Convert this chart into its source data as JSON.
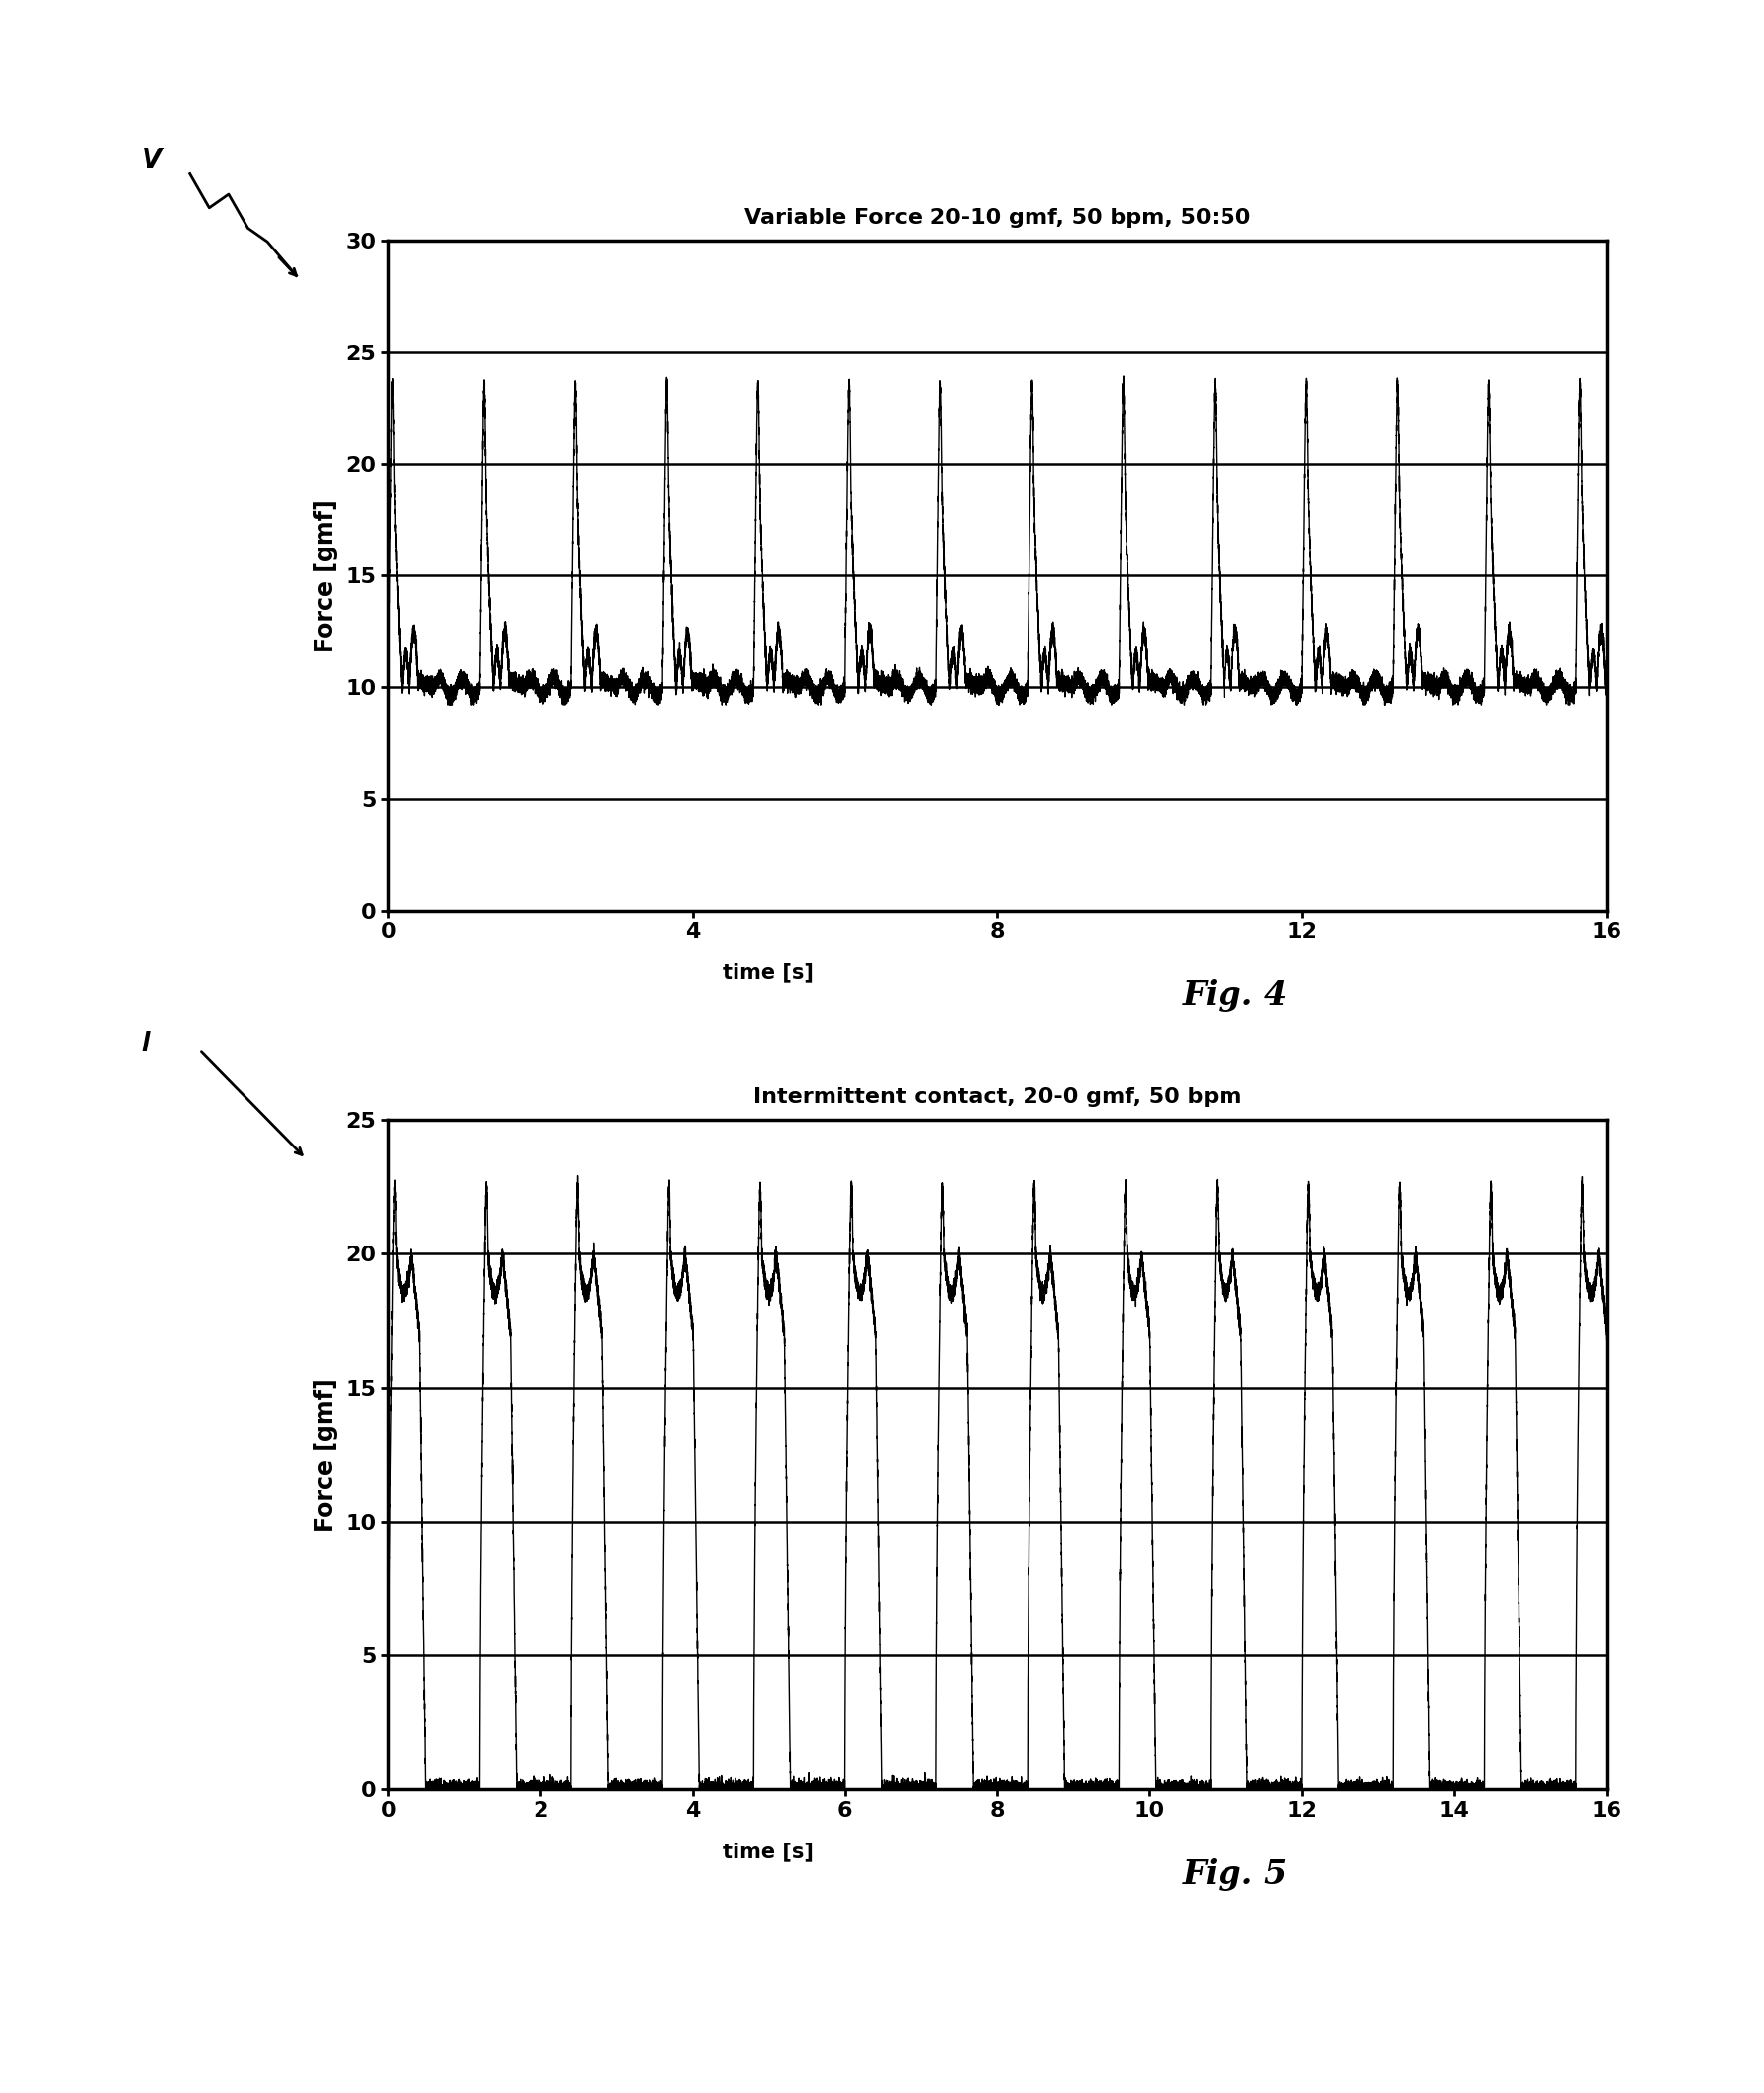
{
  "fig4_title": "Variable Force 20-10 gmf, 50 bpm, 50:50",
  "fig5_title": "Intermittent contact, 20-0 gmf, 50 bpm",
  "xlabel": "time [s]",
  "ylabel": "Force [gmf]",
  "fig4_caption": "Fig. 4",
  "fig5_caption": "Fig. 5",
  "fig4_ylim": [
    0,
    30
  ],
  "fig4_yticks": [
    0,
    5,
    10,
    15,
    20,
    25,
    30
  ],
  "fig4_xlim": [
    0,
    16
  ],
  "fig4_xticks": [
    0,
    4,
    8,
    12,
    16
  ],
  "fig5_ylim": [
    0,
    25
  ],
  "fig5_yticks": [
    0,
    5,
    10,
    15,
    20,
    25
  ],
  "fig5_xlim": [
    0,
    16
  ],
  "fig5_xticks": [
    0,
    2,
    4,
    6,
    8,
    10,
    12,
    14,
    16
  ],
  "line_color": "#000000",
  "bg_color": "#ffffff",
  "bpm": 50,
  "fig4_force_min": 10,
  "fig4_force_max": 20,
  "fig5_force_min": 0,
  "fig5_force_max": 20
}
